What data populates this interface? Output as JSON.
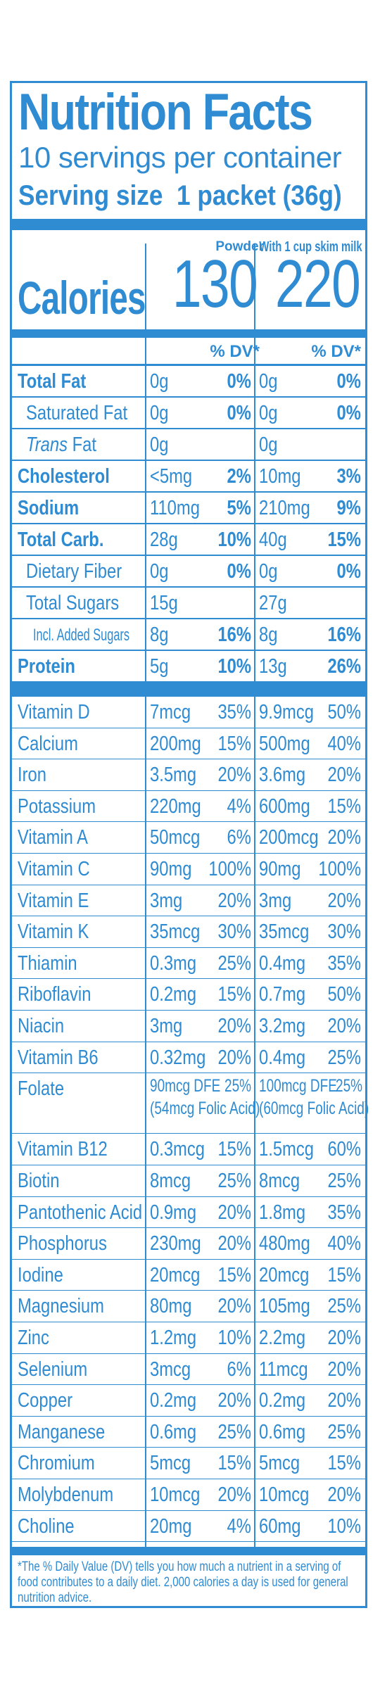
{
  "header": {
    "title": "Nutrition Facts",
    "servings": "10 servings per container",
    "serving_size_label": "Serving size",
    "serving_size_value": "1 packet (36g)"
  },
  "columns": {
    "powder_label": "Powder",
    "milk_label": "With 1 cup skim milk",
    "calories_label": "Calories",
    "calories_powder": "130",
    "calories_milk": "220",
    "dv_header": "% DV*"
  },
  "nutrients": [
    {
      "name": "Total Fat",
      "style": "bold",
      "indent": 0,
      "a": "0g",
      "ad": "0%",
      "b": "0g",
      "bd": "0%"
    },
    {
      "name": "Saturated Fat",
      "style": "normal",
      "indent": 1,
      "a": "0g",
      "ad": "0%",
      "b": "0g",
      "bd": "0%"
    },
    {
      "name": "Trans",
      "name2": " Fat",
      "style": "trans",
      "indent": 1,
      "a": "0g",
      "ad": "",
      "b": "0g",
      "bd": ""
    },
    {
      "name": "Cholesterol",
      "style": "bold",
      "indent": 0,
      "a": "<5mg",
      "ad": "2%",
      "b": "10mg",
      "bd": "3%"
    },
    {
      "name": "Sodium",
      "style": "bold",
      "indent": 0,
      "a": "110mg",
      "ad": "5%",
      "b": "210mg",
      "bd": "9%"
    },
    {
      "name": "Total Carb.",
      "style": "bold",
      "indent": 0,
      "a": "28g",
      "ad": "10%",
      "b": "40g",
      "bd": "15%"
    },
    {
      "name": "Dietary Fiber",
      "style": "normal",
      "indent": 1,
      "a": "0g",
      "ad": "0%",
      "b": "0g",
      "bd": "0%"
    },
    {
      "name": "Total Sugars",
      "style": "normal",
      "indent": 1,
      "a": "15g",
      "ad": "",
      "b": "27g",
      "bd": ""
    },
    {
      "name": "Incl. Added Sugars",
      "style": "small",
      "indent": 2,
      "a": "8g",
      "ad": "16%",
      "b": "8g",
      "bd": "16%"
    },
    {
      "name": "Protein",
      "style": "bold",
      "indent": 0,
      "a": "5g",
      "ad": "10%",
      "b": "13g",
      "bd": "26%"
    }
  ],
  "vitamins": [
    {
      "name": "Vitamin D",
      "a": "7mcg",
      "ad": "35%",
      "b": "9.9mcg",
      "bd": "50%"
    },
    {
      "name": "Calcium",
      "a": "200mg",
      "ad": "15%",
      "b": "500mg",
      "bd": "40%"
    },
    {
      "name": "Iron",
      "a": "3.5mg",
      "ad": "20%",
      "b": "3.6mg",
      "bd": "20%"
    },
    {
      "name": "Potassium",
      "a": "220mg",
      "ad": "4%",
      "b": "600mg",
      "bd": "15%"
    },
    {
      "name": "Vitamin A",
      "a": "50mcg",
      "ad": "6%",
      "b": "200mcg",
      "bd": "20%"
    },
    {
      "name": "Vitamin C",
      "a": "90mg",
      "ad": "100%",
      "b": "90mg",
      "bd": "100%"
    },
    {
      "name": "Vitamin E",
      "a": "3mg",
      "ad": "20%",
      "b": "3mg",
      "bd": "20%"
    },
    {
      "name": "Vitamin K",
      "a": "35mcg",
      "ad": "30%",
      "b": "35mcg",
      "bd": "30%"
    },
    {
      "name": "Thiamin",
      "a": "0.3mg",
      "ad": "25%",
      "b": "0.4mg",
      "bd": "35%"
    },
    {
      "name": "Riboflavin",
      "a": "0.2mg",
      "ad": "15%",
      "b": "0.7mg",
      "bd": "50%"
    },
    {
      "name": "Niacin",
      "a": "3mg",
      "ad": "20%",
      "b": "3.2mg",
      "bd": "20%"
    },
    {
      "name": "Vitamin B6",
      "a": "0.32mg",
      "ad": "20%",
      "b": "0.4mg",
      "bd": "25%"
    },
    {
      "name": "Folate",
      "a": "90mcg DFE",
      "a2": "(54mcg Folic Acid)",
      "ad": "25%",
      "b": "100mcg DFE",
      "b2": "(60mcg Folic Acid)",
      "bd": "25%"
    },
    {
      "name": "Vitamin B12",
      "a": "0.3mcg",
      "ad": "15%",
      "b": "1.5mcg",
      "bd": "60%"
    },
    {
      "name": "Biotin",
      "a": "8mcg",
      "ad": "25%",
      "b": "8mcg",
      "bd": "25%"
    },
    {
      "name": "Pantothenic Acid",
      "a": "0.9mg",
      "ad": "20%",
      "b": "1.8mg",
      "bd": "35%"
    },
    {
      "name": "Phosphorus",
      "a": "230mg",
      "ad": "20%",
      "b": "480mg",
      "bd": "40%"
    },
    {
      "name": "Iodine",
      "a": "20mcg",
      "ad": "15%",
      "b": "20mcg",
      "bd": "15%"
    },
    {
      "name": "Magnesium",
      "a": "80mg",
      "ad": "20%",
      "b": "105mg",
      "bd": "25%"
    },
    {
      "name": "Zinc",
      "a": "1.2mg",
      "ad": "10%",
      "b": "2.2mg",
      "bd": "20%"
    },
    {
      "name": "Selenium",
      "a": "3mcg",
      "ad": "6%",
      "b": "11mcg",
      "bd": "20%"
    },
    {
      "name": "Copper",
      "a": "0.2mg",
      "ad": "20%",
      "b": "0.2mg",
      "bd": "20%"
    },
    {
      "name": "Manganese",
      "a": "0.6mg",
      "ad": "25%",
      "b": "0.6mg",
      "bd": "25%"
    },
    {
      "name": "Chromium",
      "a": "5mcg",
      "ad": "15%",
      "b": "5mcg",
      "bd": "15%"
    },
    {
      "name": "Molybdenum",
      "a": "10mcg",
      "ad": "20%",
      "b": "10mcg",
      "bd": "20%"
    },
    {
      "name": "Choline",
      "a": "20mg",
      "ad": "4%",
      "b": "60mg",
      "bd": "10%"
    }
  ],
  "footnote": "*The % Daily Value (DV) tells you how much a nutrient in a serving of food contributes to a daily diet. 2,000 calories a day is used for general nutrition advice.",
  "colors": {
    "label_blue": "#2f8bd2",
    "background": "#ffffff"
  }
}
